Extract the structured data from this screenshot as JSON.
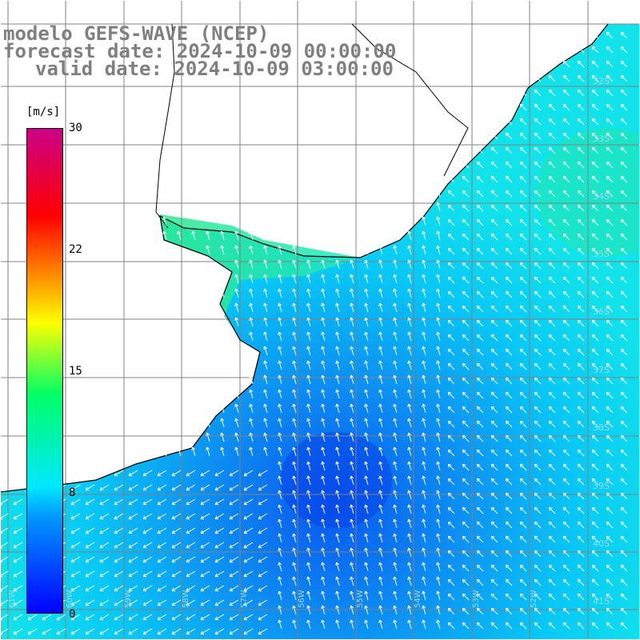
{
  "title": {
    "line1": "modelo GEFS-WAVE (NCEP)",
    "line2": "forecast date: 2024-10-09 00:00:00",
    "line3": "valid date: 2024-10-09 03:00:00"
  },
  "colorbar": {
    "units": "[m/s]",
    "ticks": [
      "30",
      "22",
      "15",
      "8",
      "0"
    ],
    "min": 0,
    "max": 30
  },
  "latitude_labels": [
    "32S",
    "33S",
    "34S",
    "35S",
    "36S",
    "37S",
    "38S",
    "39S",
    "40S",
    "41S"
  ],
  "longitude_labels": [
    "61W",
    "60W",
    "59W",
    "58W",
    "57W",
    "56W",
    "55W",
    "54W",
    "53W",
    "52W"
  ],
  "colors": {
    "land": "#ffffff",
    "coast": "#000000",
    "grid": "#808080",
    "arrow": "#ffffff",
    "title_text": "#7f7f7f"
  }
}
